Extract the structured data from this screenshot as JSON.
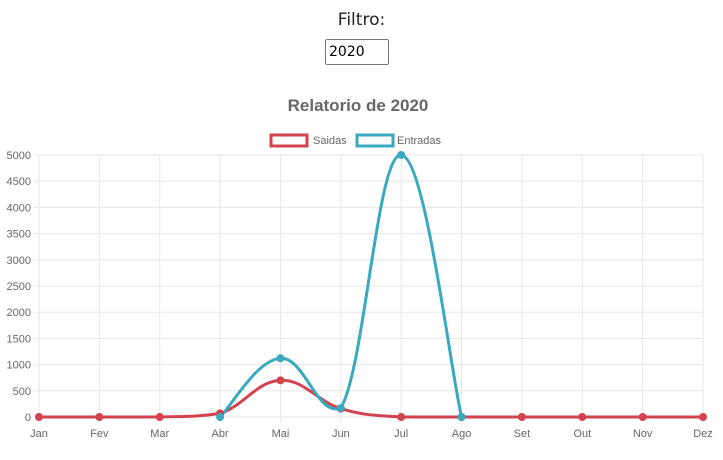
{
  "filter": {
    "label": "Filtro:",
    "value": "2020"
  },
  "chart_data": {
    "type": "line",
    "title": "Relatorio de 2020",
    "categories": [
      "Jan",
      "Fev",
      "Mar",
      "Abr",
      "Mai",
      "Jun",
      "Jul",
      "Ago",
      "Set",
      "Out",
      "Nov",
      "Dez"
    ],
    "series": [
      {
        "name": "Saidas",
        "color": "#d3434e",
        "values": [
          0,
          0,
          0,
          70,
          700,
          160,
          0,
          0,
          0,
          0,
          0,
          0
        ]
      },
      {
        "name": "Entradas",
        "color": "#38a9bf",
        "values": [
          null,
          null,
          null,
          0,
          1120,
          170,
          5000,
          0,
          null,
          null,
          null,
          null
        ]
      }
    ],
    "ylim": [
      0,
      5000
    ],
    "yticks": [
      0,
      500,
      1000,
      1500,
      2000,
      2500,
      3000,
      3500,
      4000,
      4500,
      5000
    ],
    "grid": true,
    "legend": "top-center"
  }
}
